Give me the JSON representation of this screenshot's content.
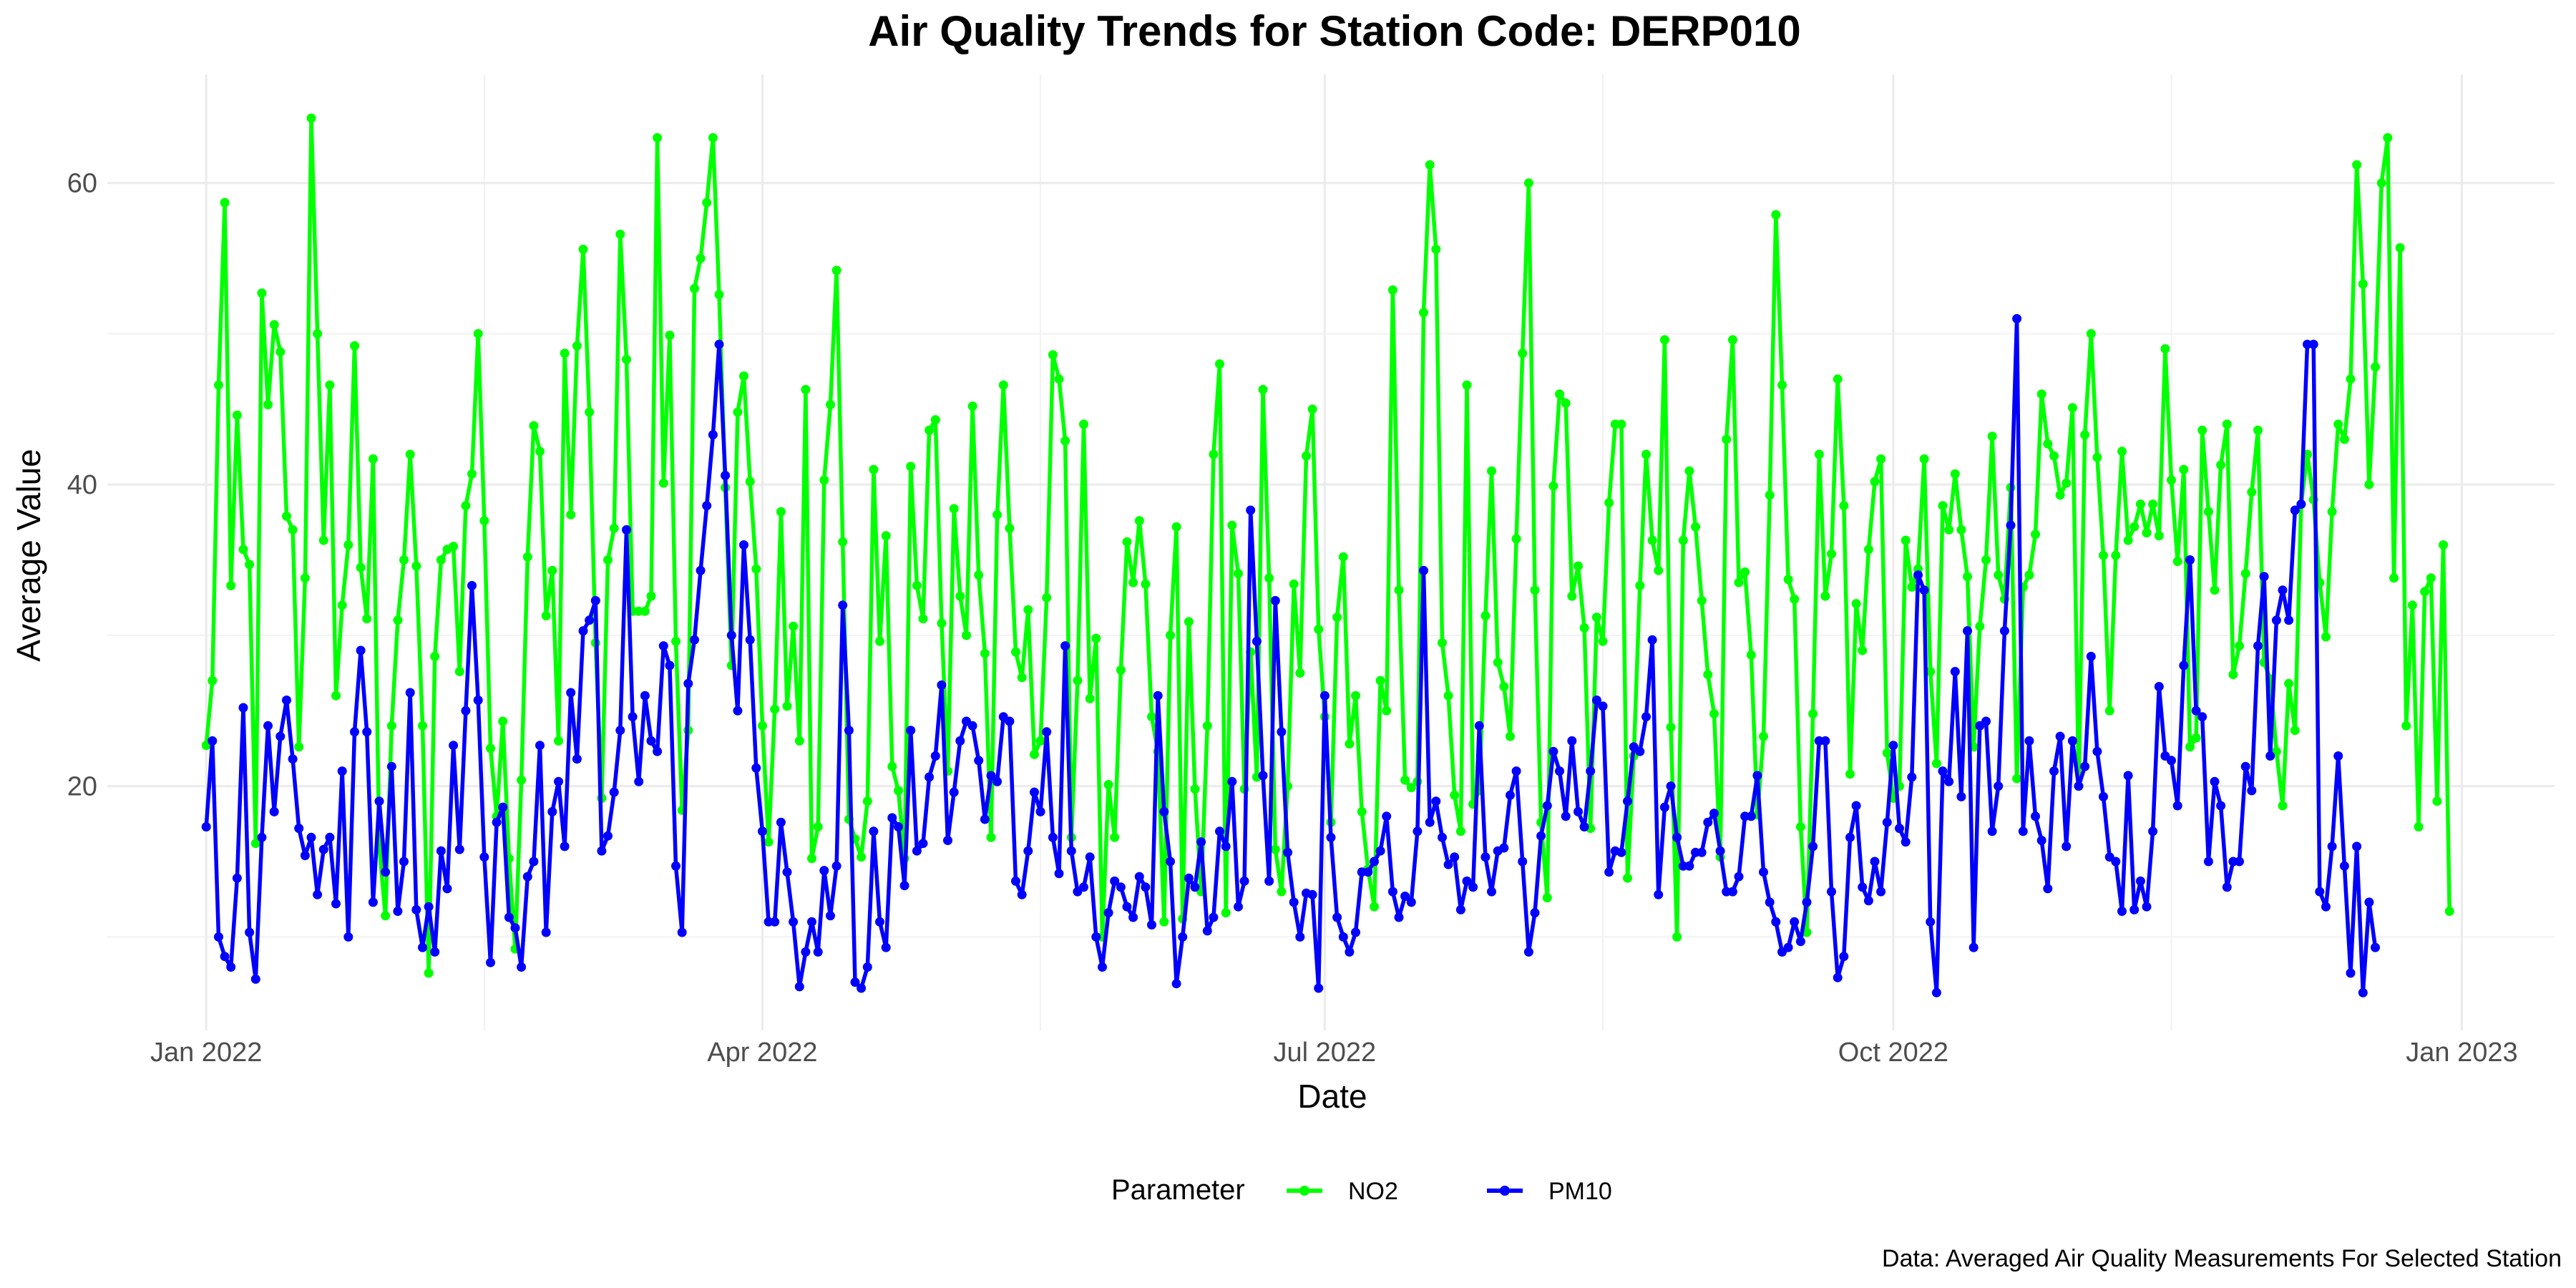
{
  "chart_data": {
    "type": "line",
    "title": "Air Quality Trends for Station Code: DERP010",
    "xlabel": "Date",
    "ylabel": "Average Value",
    "caption": "Data: Averaged Air Quality Measurements For Selected Station",
    "legend": {
      "title": "Parameter",
      "position": "bottom"
    },
    "grid": true,
    "xlim": [
      "2021-12-16",
      "2023-01-16"
    ],
    "ylim": [
      3.8,
      67.2
    ],
    "x_ticks": [
      {
        "date": "2022-01-01",
        "label": "Jan 2022"
      },
      {
        "date": "2022-04-01",
        "label": "Apr 2022"
      },
      {
        "date": "2022-07-01",
        "label": "Jul 2022"
      },
      {
        "date": "2022-10-01",
        "label": "Oct 2022"
      },
      {
        "date": "2023-01-01",
        "label": "Jan 2023"
      }
    ],
    "x_minor_ticks": [
      "2022-02-15",
      "2022-05-16",
      "2022-08-15",
      "2022-11-15"
    ],
    "y_ticks": [
      20,
      40,
      60
    ],
    "y_minor_ticks": [
      10,
      30,
      50
    ],
    "series": [
      {
        "name": "NO2",
        "color": "#00ff00",
        "x_start": "2022-01-01",
        "x_step_days": 1,
        "values": [
          22.7,
          27.0,
          46.6,
          58.7,
          33.3,
          44.6,
          35.7,
          34.7,
          16.2,
          52.7,
          45.3,
          50.6,
          48.8,
          37.9,
          37.0,
          22.6,
          33.8,
          64.3,
          50.0,
          36.3,
          46.6,
          26.0,
          32.0,
          36.0,
          49.2,
          34.5,
          31.1,
          41.7,
          16.0,
          11.4,
          24.0,
          31.0,
          35.0,
          42.0,
          34.6,
          24.0,
          7.6,
          28.6,
          35.0,
          35.7,
          35.9,
          27.6,
          38.6,
          40.7,
          50.0,
          37.6,
          22.5,
          18.0,
          24.3,
          15.2,
          9.2,
          20.4,
          35.2,
          43.9,
          42.2,
          31.3,
          34.3,
          23.0,
          48.7,
          38.0,
          49.2,
          55.6,
          44.8,
          29.5,
          19.2,
          35.0,
          37.1,
          56.6,
          48.3,
          31.6,
          31.6,
          31.6,
          32.6,
          63.0,
          40.1,
          49.9,
          29.6,
          18.4,
          23.7,
          53.0,
          55.0,
          58.7,
          63.0,
          52.6,
          39.8,
          28.0,
          44.8,
          47.2,
          40.2,
          34.4,
          24.0,
          16.3,
          25.1,
          38.2,
          25.3,
          30.6,
          23.0,
          46.3,
          15.2,
          17.3,
          40.3,
          45.3,
          54.2,
          36.2,
          17.8,
          16.5,
          15.3,
          19.0,
          41.0,
          29.6,
          36.6,
          21.3,
          19.7,
          15.2,
          41.2,
          33.3,
          31.1,
          43.6,
          44.3,
          30.8,
          21.0,
          38.4,
          32.6,
          30.0,
          45.2,
          34.0,
          28.8,
          16.6,
          38.0,
          46.6,
          37.1,
          28.9,
          27.2,
          31.7,
          22.1,
          23.0,
          32.5,
          48.6,
          47.0,
          42.9,
          16.6,
          27.0,
          44.0,
          25.8,
          29.8,
          10.0,
          20.1,
          16.6,
          27.7,
          36.2,
          33.5,
          37.6,
          33.4,
          24.6,
          22.3,
          11.0,
          30.0,
          37.2,
          11.2,
          30.9,
          19.8,
          13.0,
          24.0,
          42.0,
          48.0,
          11.6,
          37.3,
          34.1,
          19.8,
          28.9,
          20.6,
          46.3,
          33.8,
          15.8,
          13.0,
          20.0,
          33.4,
          27.5,
          41.9,
          45.0,
          30.4,
          24.6,
          17.6,
          31.2,
          35.2,
          22.8,
          26.0,
          18.3,
          14.5,
          12.0,
          27.0,
          25.0,
          52.9,
          33.0,
          20.4,
          19.9,
          20.3,
          51.4,
          61.2,
          55.6,
          29.5,
          26.0,
          19.4,
          17.0,
          46.6,
          18.8,
          19.7,
          31.3,
          40.9,
          28.2,
          26.6,
          23.3,
          36.4,
          48.7,
          60.0,
          33.0,
          17.6,
          12.6,
          39.9,
          46.0,
          45.4,
          32.6,
          34.6,
          30.5,
          17.2,
          31.2,
          29.6,
          38.8,
          44.0,
          44.0,
          13.9,
          22.0,
          33.3,
          42.0,
          36.3,
          34.3,
          49.6,
          23.9,
          10.0,
          36.3,
          40.9,
          37.2,
          32.3,
          27.4,
          24.8,
          15.3,
          43.0,
          49.6,
          33.5,
          34.2,
          28.7,
          18.1,
          23.3,
          39.3,
          57.9,
          46.6,
          33.7,
          32.4,
          17.3,
          10.3,
          24.8,
          42.0,
          32.6,
          35.4,
          47.0,
          38.6,
          20.8,
          32.1,
          29.0,
          35.7,
          40.2,
          41.7,
          22.2,
          19.2,
          20.0,
          36.3,
          33.2,
          34.4,
          41.7,
          27.6,
          21.5,
          38.6,
          37.0,
          40.7,
          37.0,
          33.9,
          22.6,
          30.6,
          35.0,
          43.2,
          34.0,
          32.4,
          39.8,
          20.5,
          33.2,
          34.0,
          36.7,
          46.0,
          42.7,
          41.9,
          39.3,
          40.1,
          45.1,
          20.0,
          43.3,
          50.0,
          41.8,
          35.3,
          25.0,
          35.3,
          42.2,
          36.3,
          37.2,
          38.7,
          36.8,
          38.7,
          36.6,
          49.0,
          40.3,
          34.9,
          41.0,
          22.6,
          23.2,
          43.6,
          38.2,
          33.0,
          41.3,
          44.0,
          27.4,
          29.3,
          34.1,
          39.5,
          43.6,
          28.2,
          27.1,
          22.3,
          18.7,
          26.8,
          23.7,
          38.7,
          42.0,
          39.0,
          33.5,
          29.9,
          38.2,
          44.0,
          43.0,
          47.0,
          61.2,
          53.3,
          40.0,
          47.8,
          60.0,
          63.0,
          33.8,
          55.7,
          24.0,
          32.0,
          17.3,
          32.9,
          33.8,
          19.0,
          36.0,
          11.7
        ]
      },
      {
        "name": "PM10",
        "color": "#0000ff",
        "x_start": "2022-01-01",
        "x_step_days": 1,
        "values": [
          17.3,
          23.0,
          10.0,
          8.7,
          8.0,
          13.9,
          25.2,
          10.3,
          7.2,
          16.6,
          24.0,
          18.3,
          23.3,
          25.7,
          21.8,
          17.2,
          15.4,
          16.6,
          12.8,
          15.8,
          16.6,
          12.2,
          21.0,
          10.0,
          23.6,
          29.0,
          23.6,
          12.3,
          19.0,
          14.3,
          21.3,
          11.7,
          15.0,
          26.2,
          11.8,
          9.3,
          12.0,
          9.0,
          15.7,
          13.2,
          22.7,
          15.8,
          25.0,
          33.3,
          25.7,
          15.3,
          8.3,
          17.6,
          18.6,
          11.3,
          10.6,
          8.0,
          14.0,
          15.0,
          22.7,
          10.3,
          18.3,
          20.3,
          16.0,
          26.2,
          21.8,
          30.3,
          31.0,
          32.3,
          15.7,
          16.7,
          19.6,
          23.7,
          37.0,
          24.6,
          20.3,
          26.0,
          23.0,
          22.3,
          29.3,
          28.0,
          14.7,
          10.3,
          26.8,
          29.7,
          34.3,
          38.6,
          43.3,
          49.3,
          40.6,
          30.0,
          25.0,
          36.0,
          29.7,
          21.2,
          17.0,
          11.0,
          11.0,
          17.6,
          14.3,
          11.0,
          6.7,
          9.0,
          11.0,
          9.0,
          14.4,
          11.4,
          14.7,
          32.0,
          23.7,
          7.0,
          6.6,
          8.0,
          17.0,
          11.0,
          9.3,
          17.9,
          17.3,
          13.4,
          23.7,
          15.7,
          16.2,
          20.6,
          22.0,
          26.7,
          16.4,
          19.6,
          23.0,
          24.3,
          24.0,
          21.7,
          17.8,
          20.7,
          20.3,
          24.6,
          24.3,
          13.7,
          12.8,
          15.7,
          19.6,
          18.3,
          23.6,
          16.6,
          14.2,
          29.3,
          15.7,
          13.0,
          13.3,
          15.3,
          10.0,
          8.0,
          11.6,
          13.7,
          13.3,
          12.0,
          11.3,
          14.0,
          13.3,
          10.8,
          26.0,
          18.3,
          15.0,
          6.9,
          10.0,
          13.9,
          13.3,
          16.3,
          10.4,
          11.3,
          17.0,
          16.0,
          20.3,
          12.0,
          13.7,
          38.3,
          29.6,
          20.7,
          13.7,
          32.3,
          23.6,
          15.6,
          12.3,
          10.0,
          12.9,
          12.8,
          6.6,
          26.0,
          16.6,
          11.3,
          10.0,
          9.0,
          10.3,
          14.3,
          14.3,
          15.0,
          15.7,
          18.0,
          13.0,
          11.3,
          12.7,
          12.3,
          17.0,
          34.3,
          17.6,
          19.0,
          16.6,
          14.8,
          15.3,
          11.8,
          13.7,
          13.3,
          24.0,
          15.3,
          13.0,
          15.7,
          15.9,
          19.4,
          21.0,
          15.0,
          9.0,
          11.6,
          16.7,
          18.7,
          22.3,
          21.0,
          18.0,
          23.0,
          18.3,
          17.3,
          21.0,
          25.7,
          25.3,
          14.3,
          15.7,
          15.6,
          19.0,
          22.6,
          22.3,
          24.6,
          29.7,
          12.8,
          18.6,
          20.0,
          16.6,
          14.7,
          14.7,
          15.6,
          15.6,
          17.6,
          18.2,
          15.7,
          13.0,
          13.0,
          14.0,
          18.0,
          18.0,
          20.7,
          14.3,
          12.3,
          11.0,
          9.0,
          9.3,
          11.0,
          9.7,
          12.3,
          16.0,
          23.0,
          23.0,
          13.0,
          7.3,
          8.7,
          16.6,
          18.7,
          13.3,
          12.4,
          15.0,
          13.0,
          17.6,
          22.7,
          17.2,
          16.3,
          20.6,
          34.0,
          33.0,
          11.0,
          6.3,
          21.0,
          20.3,
          27.6,
          19.3,
          30.3,
          9.3,
          24.0,
          24.3,
          17.0,
          20.0,
          30.3,
          37.3,
          51.0,
          17.0,
          23.0,
          18.0,
          16.4,
          13.2,
          21.0,
          23.3,
          16.0,
          23.0,
          20.0,
          21.3,
          28.6,
          22.3,
          19.3,
          15.3,
          15.0,
          11.7,
          20.7,
          11.8,
          13.7,
          12.0,
          17.0,
          26.6,
          22.0,
          21.7,
          18.7,
          28.0,
          35.0,
          25.0,
          24.6,
          15.0,
          20.3,
          18.7,
          13.3,
          15.0,
          15.0,
          21.3,
          19.7,
          29.3,
          33.9,
          22.0,
          31.0,
          33.0,
          31.0,
          38.3,
          38.7,
          49.3,
          49.3,
          13.0,
          12.0,
          16.0,
          22.0,
          14.7,
          7.6,
          16.0,
          6.3,
          12.3,
          9.3
        ]
      }
    ]
  }
}
